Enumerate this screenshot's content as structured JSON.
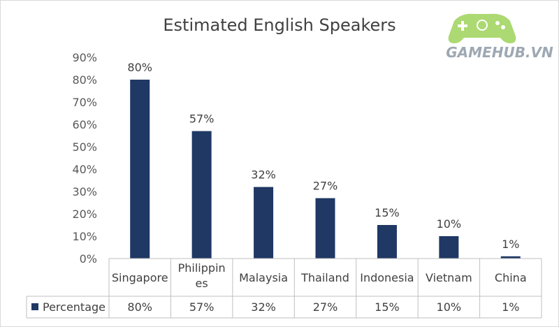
{
  "chart_data": {
    "type": "bar",
    "title": "Estimated English Speakers",
    "categories": [
      "Singapore",
      "Philippines",
      "Malaysia",
      "Thailand",
      "Indonesia",
      "Vietnam",
      "China"
    ],
    "category_lines": [
      [
        "Singapore"
      ],
      [
        "Philippin",
        "es"
      ],
      [
        "Malaysia"
      ],
      [
        "Thailand"
      ],
      [
        "Indonesia"
      ],
      [
        "Vietnam"
      ],
      [
        "China"
      ]
    ],
    "series": [
      {
        "name": "Percentage",
        "values": [
          80,
          57,
          32,
          27,
          15,
          10,
          1
        ]
      }
    ],
    "data_labels": [
      "80%",
      "57%",
      "32%",
      "27%",
      "15%",
      "10%",
      "1%"
    ],
    "y_ticks": [
      "0%",
      "10%",
      "20%",
      "30%",
      "40%",
      "50%",
      "60%",
      "70%",
      "80%",
      "90%"
    ],
    "ylim": [
      0,
      90
    ],
    "grid": false,
    "data_table": true,
    "legend_key_color": "#1f3864",
    "bar_color": "#1f3864"
  },
  "watermark": {
    "text": "GAMEHUB.VN",
    "icon": "gamepad-icon"
  }
}
